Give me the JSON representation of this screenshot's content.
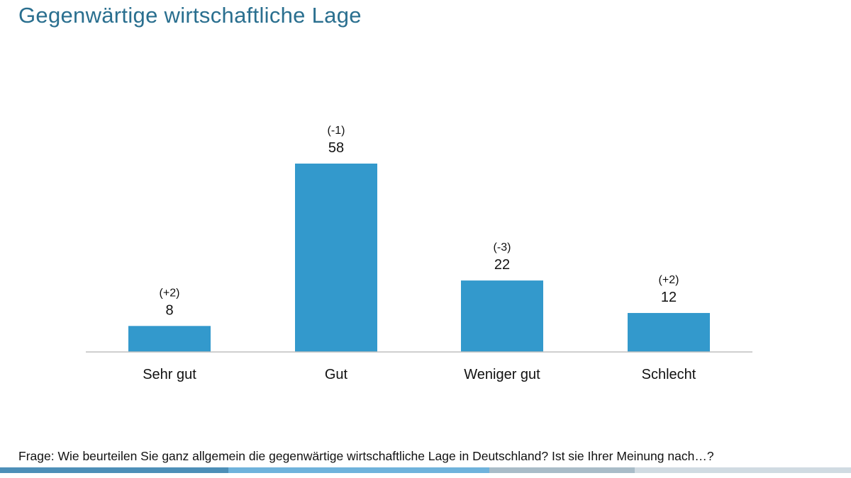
{
  "header": {
    "title": "Gegenwärtige wirtschaftliche Lage"
  },
  "chart_data": {
    "type": "bar",
    "title": "Gegenwärtige wirtschaftliche Lage",
    "categories": [
      "Sehr gut",
      "Gut",
      "Weniger gut",
      "Schlecht"
    ],
    "values": [
      8,
      58,
      22,
      12
    ],
    "changes": [
      "(+2)",
      "(-1)",
      "(-3)",
      "(+2)"
    ],
    "ylim": [
      0,
      58
    ],
    "grid": false,
    "legend": "none",
    "bar_color": "#3399cc",
    "axis_color": "#bfbfbf"
  },
  "footer": {
    "question": "Frage: Wie beurteilen Sie ganz allgemein die gegenwärtige wirtschaftliche Lage in Deutschland? Ist sie Ihrer Meinung nach…?"
  },
  "colors": {
    "title": "#2a6f8f",
    "bottom_bar": [
      "#4d8fb8",
      "#6fb3dc",
      "#a9bcc8",
      "#d0dbe2"
    ]
  }
}
